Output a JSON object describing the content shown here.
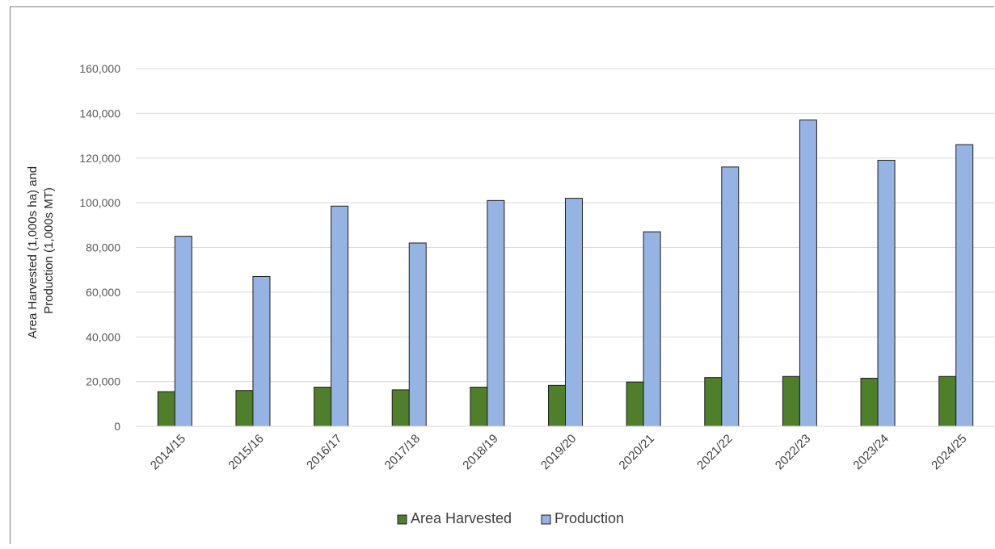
{
  "chart_data": {
    "type": "bar",
    "title": "",
    "xlabel": "",
    "ylabel_lines": [
      "Area Harvested (1,000s ha) and",
      "Production (1,000s MT)"
    ],
    "ylim": [
      0,
      160000
    ],
    "yticks": [
      0,
      20000,
      40000,
      60000,
      80000,
      100000,
      120000,
      140000,
      160000
    ],
    "ytick_labels": [
      "0",
      "20,000",
      "40,000",
      "60,000",
      "80,000",
      "100,000",
      "120,000",
      "140,000",
      "160,000"
    ],
    "grid": true,
    "legend_position": "bottom",
    "categories": [
      "2014/15",
      "2015/16",
      "2016/17",
      "2017/18",
      "2018/19",
      "2019/20",
      "2020/21",
      "2021/22",
      "2022/23",
      "2023/24",
      "2024/25"
    ],
    "series": [
      {
        "name": "Area Harvested",
        "color": "#4f7f2a",
        "values": [
          15500,
          16000,
          17500,
          16300,
          17500,
          18300,
          19800,
          21800,
          22300,
          21500,
          22300
        ]
      },
      {
        "name": "Production",
        "color": "#95b3e3",
        "values": [
          85000,
          67000,
          98500,
          82000,
          101000,
          102000,
          87000,
          116000,
          137000,
          119000,
          126000
        ]
      }
    ]
  }
}
